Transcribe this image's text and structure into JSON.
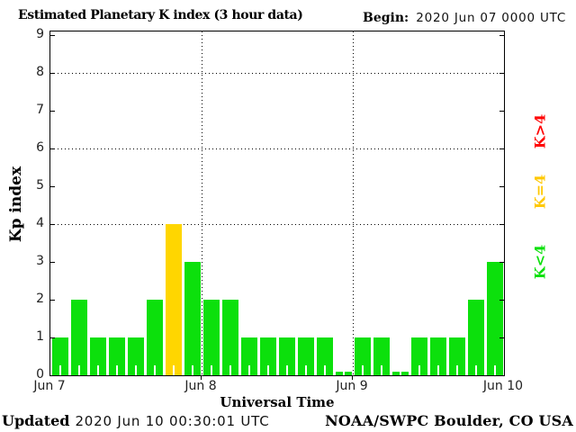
{
  "header": {
    "title": "Estimated Planetary K index (3 hour data)",
    "begin_label": "Begin:",
    "begin_value": "2020 Jun 07 0000 UTC"
  },
  "footer": {
    "updated_label": "Updated",
    "updated_value": "2020 Jun 10 00:30:01 UTC",
    "source": "NOAA/SWPC Boulder, CO USA"
  },
  "chart_data": {
    "type": "bar",
    "title": "Estimated Planetary K index (3 hour data)",
    "xlabel": "Universal Time",
    "ylabel": "Kp index",
    "ylim": [
      0,
      9.1
    ],
    "y_ticks": [
      0,
      1,
      2,
      3,
      4,
      5,
      6,
      7,
      8,
      9
    ],
    "h_gridlines": [
      4,
      6,
      8
    ],
    "x_tick_labels": [
      "Jun 7",
      "Jun 8",
      "Jun 9",
      "Jun 10"
    ],
    "days": 3,
    "bars_per_day": 8,
    "values": [
      1,
      2,
      1,
      1,
      1,
      2,
      4,
      3,
      2,
      2,
      1,
      1,
      1,
      1,
      1,
      0,
      1,
      1,
      0,
      1,
      1,
      1,
      2,
      3
    ],
    "colors": {
      "k_lt_4": "#0ce00c",
      "k_eq_4": "#ffd600",
      "k_gt_4": "#ff0000"
    },
    "grid": "dotted",
    "legend_position": "right",
    "legend": [
      {
        "label": "K>4",
        "color": "#ff0000"
      },
      {
        "label": "K=4",
        "color": "#ffc800"
      },
      {
        "label": "K<4",
        "color": "#0ce00c"
      }
    ]
  }
}
